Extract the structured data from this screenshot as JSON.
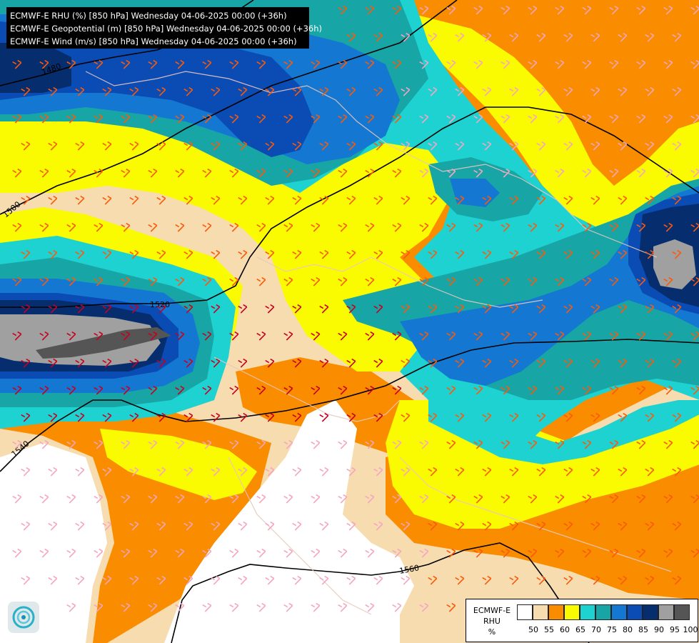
{
  "titles": [
    "ECMWF-E RHU (%) [850 hPa] Wednesday 04-06-2025 00:00 (+36h)",
    "ECMWF-E Geopotential (m) [850 hPa] Wednesday 04-06-2025 00:00 (+36h)",
    "ECMWF-E Wind (m/s) [850 hPa] Wednesday 04-06-2025 00:00 (+36h)"
  ],
  "legend": {
    "label_lines": [
      "ECMWF-E",
      "RHU",
      "%"
    ],
    "ticks": [
      "50",
      "55",
      "60",
      "65",
      "70",
      "75",
      "80",
      "85",
      "90",
      "95",
      "100"
    ],
    "colors": [
      "#ffffff",
      "#f7dcb0",
      "#fa8c00",
      "#fafa00",
      "#1ed2d2",
      "#18a5a5",
      "#1478d2",
      "#0a4bb4",
      "#062d6e",
      "#a0a0a0",
      "#555555"
    ]
  },
  "contours": [
    "1480",
    "1500",
    "1520",
    "1540",
    "1560"
  ],
  "barb_colors": {
    "light": "#f5a5c0",
    "medium": "#fa5a0a",
    "strong": "#c8001e"
  },
  "logo_icon": "ecmwf-logo-icon"
}
